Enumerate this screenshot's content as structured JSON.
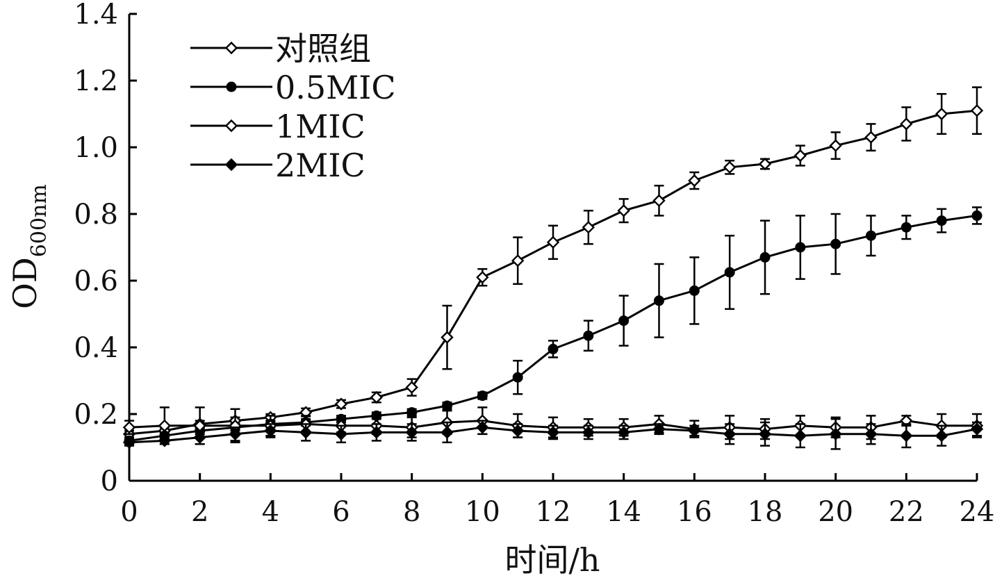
{
  "chart_data": {
    "type": "line",
    "xlabel": "时间/h",
    "ylabel": {
      "main": "OD",
      "sub": "600nm"
    },
    "xlim": [
      0,
      24
    ],
    "ylim": [
      0,
      1.4
    ],
    "xticks": [
      0,
      2,
      4,
      6,
      8,
      10,
      12,
      14,
      16,
      18,
      20,
      22,
      24
    ],
    "yticks": [
      0,
      0.2,
      0.4,
      0.6,
      0.8,
      1.0,
      1.2,
      1.4
    ],
    "ytick_labels": [
      "0",
      "0.2",
      "0.4",
      "0.6",
      "0.8",
      "1.0",
      "1.2",
      "1.4"
    ],
    "grid": false,
    "legend_position": "top-left",
    "x": [
      0,
      1,
      2,
      3,
      4,
      5,
      6,
      7,
      8,
      9,
      10,
      11,
      12,
      13,
      14,
      15,
      16,
      17,
      18,
      19,
      20,
      21,
      22,
      23,
      24
    ],
    "series": [
      {
        "name": "对照组",
        "marker": "diamond-open",
        "values": [
          0.14,
          0.15,
          0.17,
          0.18,
          0.19,
          0.205,
          0.23,
          0.25,
          0.28,
          0.43,
          0.61,
          0.66,
          0.715,
          0.76,
          0.81,
          0.84,
          0.9,
          0.94,
          0.95,
          0.975,
          1.005,
          1.03,
          1.07,
          1.1,
          1.11
        ],
        "errors": [
          0.01,
          0.01,
          0.01,
          0.01,
          0.01,
          0.012,
          0.012,
          0.015,
          0.025,
          0.095,
          0.025,
          0.07,
          0.05,
          0.05,
          0.035,
          0.045,
          0.025,
          0.02,
          0.015,
          0.03,
          0.04,
          0.04,
          0.05,
          0.06,
          0.07
        ]
      },
      {
        "name": "0.5MIC",
        "marker": "circle-filled",
        "values": [
          0.12,
          0.135,
          0.15,
          0.16,
          0.17,
          0.175,
          0.185,
          0.195,
          0.205,
          0.225,
          0.255,
          0.31,
          0.395,
          0.435,
          0.48,
          0.54,
          0.57,
          0.625,
          0.67,
          0.7,
          0.71,
          0.735,
          0.76,
          0.78,
          0.795
        ],
        "errors": [
          0.01,
          0.01,
          0.01,
          0.01,
          0.01,
          0.01,
          0.01,
          0.01,
          0.01,
          0.01,
          0.01,
          0.05,
          0.025,
          0.045,
          0.075,
          0.11,
          0.1,
          0.11,
          0.11,
          0.095,
          0.09,
          0.06,
          0.035,
          0.035,
          0.025
        ]
      },
      {
        "name": "1MIC",
        "marker": "diamond-open",
        "values": [
          0.16,
          0.165,
          0.165,
          0.165,
          0.165,
          0.17,
          0.165,
          0.165,
          0.16,
          0.175,
          0.18,
          0.165,
          0.16,
          0.16,
          0.16,
          0.17,
          0.155,
          0.16,
          0.155,
          0.165,
          0.16,
          0.16,
          0.18,
          0.165,
          0.165
        ],
        "errors": [
          0.02,
          0.055,
          0.055,
          0.05,
          0.03,
          0.025,
          0.02,
          0.025,
          0.03,
          0.035,
          0.04,
          0.035,
          0.03,
          0.025,
          0.025,
          0.025,
          0.025,
          0.035,
          0.03,
          0.03,
          0.03,
          0.035,
          0.015,
          0.035,
          0.035
        ]
      },
      {
        "name": "2MIC",
        "marker": "diamond-filled",
        "values": [
          0.115,
          0.12,
          0.13,
          0.14,
          0.15,
          0.145,
          0.14,
          0.145,
          0.145,
          0.145,
          0.16,
          0.15,
          0.145,
          0.145,
          0.145,
          0.155,
          0.15,
          0.14,
          0.14,
          0.135,
          0.14,
          0.14,
          0.135,
          0.135,
          0.155
        ],
        "errors": [
          0.01,
          0.01,
          0.02,
          0.02,
          0.02,
          0.025,
          0.025,
          0.025,
          0.025,
          0.03,
          0.02,
          0.02,
          0.02,
          0.02,
          0.02,
          0.015,
          0.015,
          0.03,
          0.035,
          0.035,
          0.045,
          0.03,
          0.035,
          0.03,
          0.02
        ]
      }
    ]
  }
}
